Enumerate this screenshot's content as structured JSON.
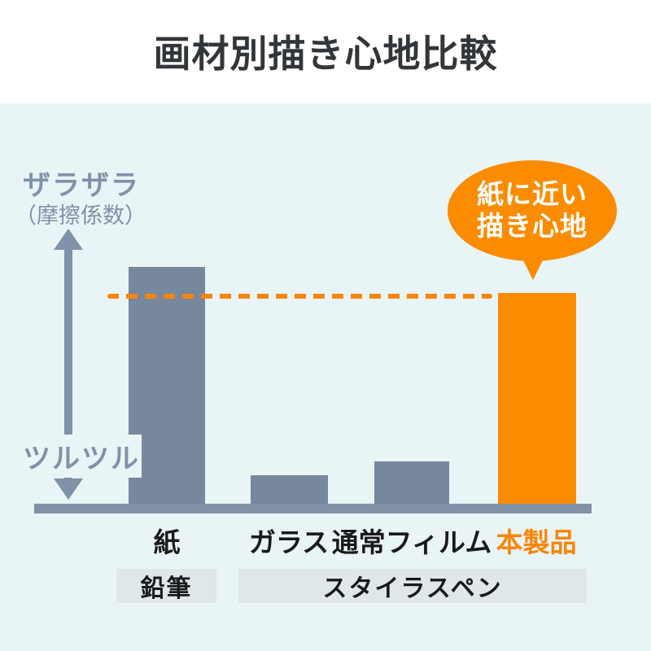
{
  "header": {
    "title": "画材別描き心地比較"
  },
  "colors": {
    "panel_background": "#e9f4f6",
    "bar_gray": "#76879e",
    "bar_orange": "#fb8c00",
    "axis_slate": "#8191a9",
    "accent_orange_text": "#f8860b",
    "label_black": "#1a1a1a",
    "group_box_background": "#dfe7ea"
  },
  "chart_data": {
    "type": "bar",
    "title": "画材別描き心地比較",
    "ylabel_top": "ザラザラ",
    "ylabel_top_sub": "（摩擦係数）",
    "ylabel_bottom": "ツルツル",
    "y_axis_note": "qualitative friction-coefficient axis, no numeric ticks",
    "categories": [
      "紙",
      "ガラス",
      "通常フィルム",
      "本製品"
    ],
    "bars": [
      {
        "name": "紙",
        "value": 1.0,
        "color": "#76879e"
      },
      {
        "name": "ガラス",
        "value": 0.12,
        "color": "#76879e"
      },
      {
        "name": "通常フィルム",
        "value": 0.18,
        "color": "#76879e"
      },
      {
        "name": "本製品",
        "value": 0.89,
        "color": "#fb8c00"
      }
    ],
    "ylim": [
      0,
      1.05
    ],
    "grid": false,
    "reference_line": {
      "value": 0.89,
      "style": "dashed",
      "color": "#f8860b",
      "meaning": "本製品 bar top, close to 紙 bar height"
    },
    "annotation": {
      "lines": [
        "紙に近い",
        "描き心地"
      ],
      "shape": "speech-bubble",
      "color": "#fb8c00",
      "points_to": "本製品"
    },
    "group_labels": [
      {
        "label": "鉛筆",
        "categories": [
          "紙"
        ]
      },
      {
        "label": "スタイラスペン",
        "categories": [
          "ガラス",
          "通常フィルム",
          "本製品"
        ]
      }
    ]
  }
}
